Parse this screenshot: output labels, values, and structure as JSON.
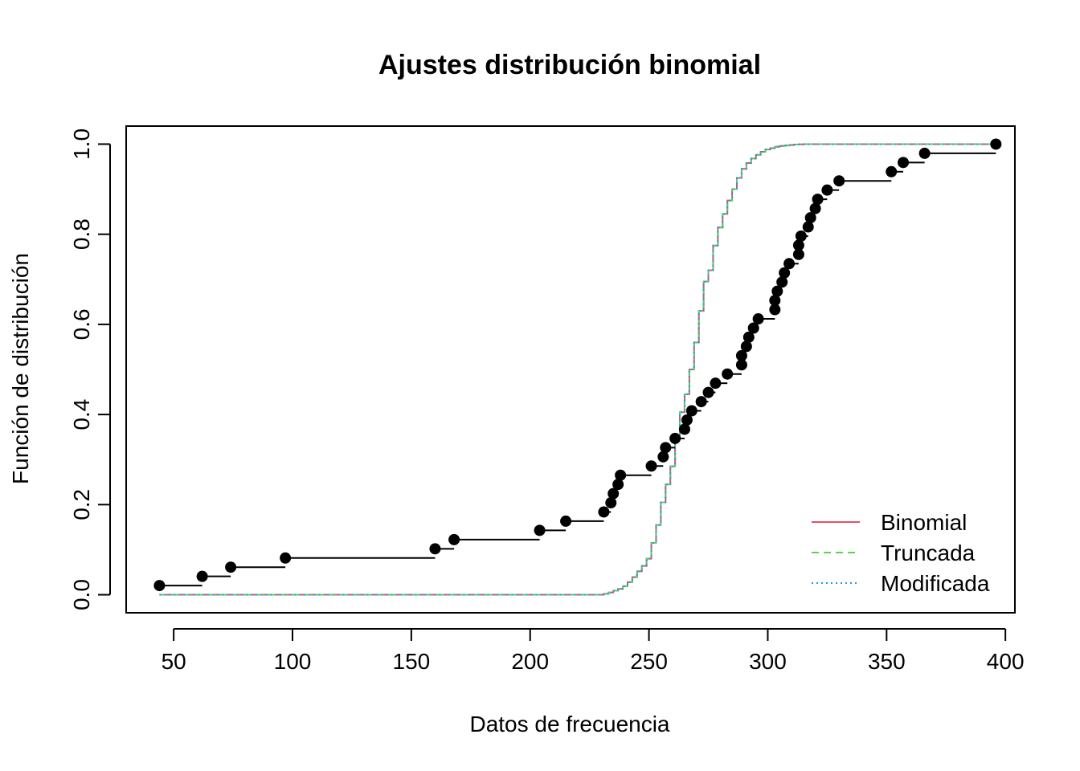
{
  "chart_data": {
    "type": "line",
    "title": "Ajustes distribución binomial",
    "xlabel": "Datos de frecuencia",
    "ylabel": "Función de distribución",
    "xlim": [
      30,
      404
    ],
    "ylim": [
      -0.04,
      1.04
    ],
    "x_ticks": [
      50,
      100,
      150,
      200,
      250,
      300,
      350,
      400
    ],
    "y_ticks": [
      0.0,
      0.2,
      0.4,
      0.6,
      0.8,
      1.0
    ],
    "x_tick_labels": [
      "50",
      "100",
      "150",
      "200",
      "250",
      "300",
      "350",
      "400"
    ],
    "y_tick_labels": [
      "0.0",
      "0.2",
      "0.4",
      "0.6",
      "0.8",
      "1.0"
    ],
    "grid": false,
    "legend_position": "bottom-right",
    "legend": [
      {
        "label": "Binomial",
        "color": "#DF536B",
        "style": "solid"
      },
      {
        "label": "Truncada",
        "color": "#61D04F",
        "style": "dashed"
      },
      {
        "label": "Modificada",
        "color": "#2297E6",
        "style": "dotted"
      }
    ],
    "empirical": {
      "name": "empirical",
      "color": "#000000",
      "x": [
        44,
        62,
        74,
        97,
        160,
        168,
        204,
        215,
        231,
        234,
        235,
        237,
        238,
        251,
        256,
        257,
        261,
        265,
        266,
        268,
        272,
        275,
        278,
        283,
        289,
        289,
        291,
        292,
        294,
        296,
        303,
        303,
        304,
        306,
        307,
        309,
        313,
        313,
        314,
        317,
        318,
        320,
        321,
        325,
        330,
        352,
        357,
        366,
        396
      ],
      "y": [
        0.0204,
        0.0408,
        0.0612,
        0.0816,
        0.102,
        0.1224,
        0.1429,
        0.1633,
        0.1837,
        0.2041,
        0.2245,
        0.2449,
        0.2653,
        0.2857,
        0.3061,
        0.3265,
        0.3469,
        0.3673,
        0.3878,
        0.4082,
        0.4286,
        0.449,
        0.4694,
        0.4898,
        0.5102,
        0.5306,
        0.551,
        0.5714,
        0.5918,
        0.6122,
        0.6327,
        0.6531,
        0.6735,
        0.6939,
        0.7143,
        0.7347,
        0.7551,
        0.7755,
        0.7959,
        0.8163,
        0.8367,
        0.8571,
        0.8776,
        0.898,
        0.9184,
        0.9388,
        0.9592,
        0.9796,
        1.0
      ]
    },
    "fitted": {
      "x": [
        44,
        228,
        231,
        233,
        235,
        237,
        239,
        241,
        243,
        245,
        247,
        249,
        251,
        253,
        255,
        257,
        259,
        261,
        263,
        265,
        267,
        269,
        271,
        273,
        275,
        277,
        279,
        281,
        283,
        285,
        287,
        289,
        291,
        293,
        295,
        297,
        299,
        301,
        303,
        305,
        307,
        309,
        311,
        313,
        315,
        317,
        320,
        396
      ],
      "y": [
        0.0,
        0.0,
        0.002,
        0.005,
        0.009,
        0.013,
        0.019,
        0.028,
        0.039,
        0.052,
        0.064,
        0.08,
        0.115,
        0.155,
        0.205,
        0.245,
        0.285,
        0.35,
        0.405,
        0.445,
        0.5,
        0.56,
        0.63,
        0.695,
        0.72,
        0.775,
        0.815,
        0.845,
        0.875,
        0.9,
        0.925,
        0.945,
        0.958,
        0.968,
        0.976,
        0.983,
        0.988,
        0.991,
        0.994,
        0.996,
        0.997,
        0.998,
        0.999,
        0.9995,
        0.9998,
        0.9999,
        1.0,
        1.0
      ]
    }
  }
}
